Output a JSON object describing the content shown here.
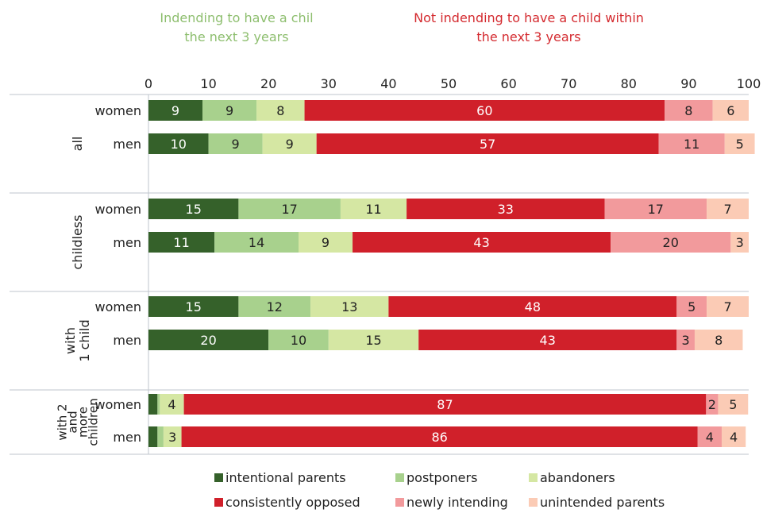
{
  "header": {
    "intending_lines": [
      "Indending to have a chil",
      "the next 3 years"
    ],
    "not_intending_lines": [
      "Not indending to have a child within",
      "the next 3 years"
    ],
    "intending_color": "#8dbe6e",
    "not_intending_color": "#d42a2f"
  },
  "chart_data": {
    "type": "bar",
    "orientation": "horizontal",
    "stacked": true,
    "xlim": [
      0,
      100
    ],
    "x_ticks": [
      "0",
      "10",
      "20",
      "30",
      "40",
      "50",
      "60",
      "70",
      "80",
      "90",
      "100"
    ],
    "grid": false,
    "legend_position": "bottom",
    "series": [
      {
        "name": "intentional parents",
        "color": "#35612a"
      },
      {
        "name": "postponers",
        "color": "#a8d18d"
      },
      {
        "name": "abandoners",
        "color": "#d5e7a3"
      },
      {
        "name": "consistently opposed",
        "color": "#d0202a"
      },
      {
        "name": "newly intending",
        "color": "#f29a9c"
      },
      {
        "name": "unintended parents",
        "color": "#fbcbb5"
      }
    ],
    "groups": [
      {
        "label": [
          "all"
        ],
        "rows": [
          {
            "label": "women",
            "values": [
              9,
              9,
              8,
              60,
              8,
              6
            ],
            "labels": [
              "9",
              "9",
              "8",
              "60",
              "8",
              "6"
            ]
          },
          {
            "label": "men",
            "values": [
              10,
              9,
              9,
              57,
              11,
              5
            ],
            "labels": [
              "10",
              "9",
              "9",
              "57",
              "11",
              "5"
            ]
          }
        ]
      },
      {
        "label": [
          "childless"
        ],
        "rows": [
          {
            "label": "women",
            "values": [
              15,
              17,
              11,
              33,
              17,
              7
            ],
            "labels": [
              "15",
              "17",
              "11",
              "33",
              "17",
              "7"
            ]
          },
          {
            "label": "men",
            "values": [
              11,
              14,
              9,
              43,
              20,
              3
            ],
            "labels": [
              "11",
              "14",
              "9",
              "43",
              "20",
              "3"
            ]
          }
        ]
      },
      {
        "label": [
          "with",
          "1 child"
        ],
        "rows": [
          {
            "label": "women",
            "values": [
              15,
              12,
              13,
              48,
              5,
              7
            ],
            "labels": [
              "15",
              "12",
              "13",
              "48",
              "5",
              "7"
            ]
          },
          {
            "label": "men",
            "values": [
              20,
              10,
              15,
              43,
              3,
              8
            ],
            "labels": [
              "20",
              "10",
              "15",
              "43",
              "3",
              "8"
            ]
          }
        ]
      },
      {
        "label": [
          "with 2",
          "and",
          "more",
          "children"
        ],
        "rows": [
          {
            "label": "women",
            "values": [
              1.5,
              0.4,
              4,
              87,
              2,
              5
            ],
            "labels": [
              "",
              "",
              "4",
              "87",
              "2",
              "5"
            ]
          },
          {
            "label": "men",
            "values": [
              1.5,
              1,
              3,
              86,
              4,
              4
            ],
            "labels": [
              "",
              "",
              "3",
              "86",
              "4",
              "4"
            ]
          }
        ]
      }
    ]
  }
}
